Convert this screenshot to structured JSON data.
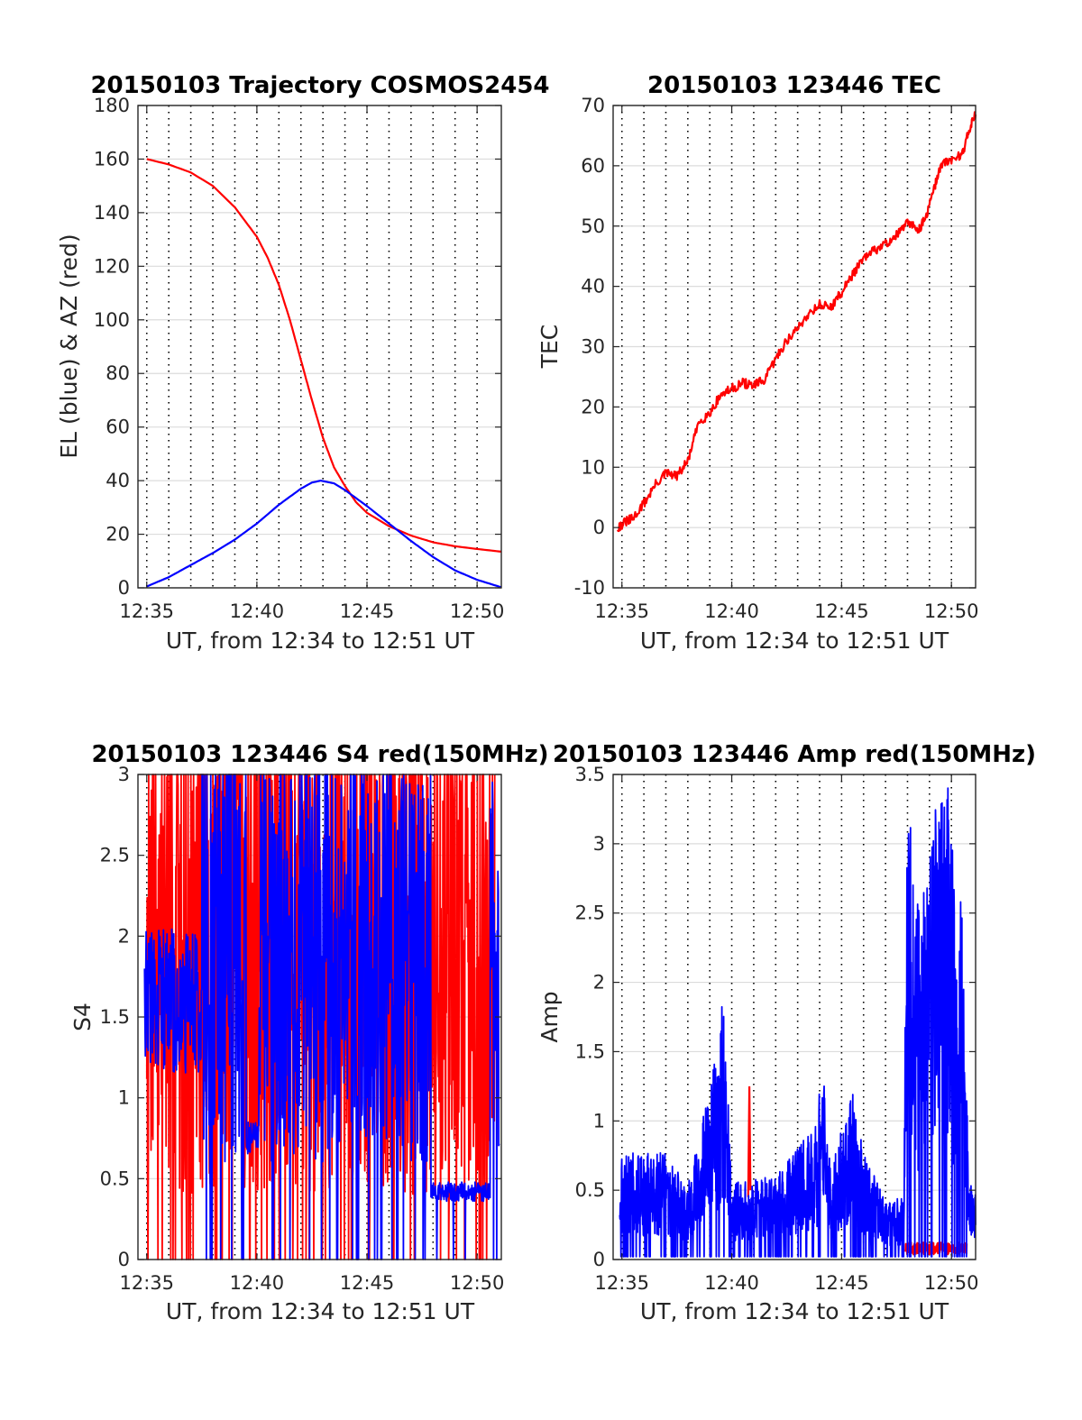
{
  "figure": {
    "description_colors": {
      "red": "#ff0000",
      "blue": "#0000ff"
    }
  },
  "chart_data": [
    {
      "id": "trajectory",
      "type": "line",
      "title": "20150103 Trajectory COSMOS2454",
      "xlabel": "UT, from 12:34 to 12:51 UT",
      "ylabel": "EL (blue) & AZ (red)",
      "xlim": [
        34.6,
        51.1
      ],
      "ylim": [
        0,
        180
      ],
      "xticks": [
        35,
        40,
        45,
        50
      ],
      "xtick_labels": [
        "12:35",
        "12:40",
        "12:45",
        "12:50"
      ],
      "yticks": [
        0,
        20,
        40,
        60,
        80,
        100,
        120,
        140,
        160,
        180
      ],
      "ytick_labels": [
        "0",
        "20",
        "40",
        "60",
        "80",
        "100",
        "120",
        "140",
        "160",
        "180"
      ],
      "vgrid_minutes": [
        35,
        36,
        37,
        38,
        39,
        40,
        41,
        42,
        43,
        44,
        45,
        46,
        47,
        48,
        49,
        50
      ],
      "series": [
        {
          "name": "AZ",
          "color": "#ff0000",
          "x": [
            35,
            36,
            37,
            38,
            39,
            40,
            40.5,
            41,
            41.5,
            42,
            42.5,
            43,
            43.5,
            44,
            44.5,
            45,
            46,
            47,
            48,
            49,
            50,
            51.1
          ],
          "y": [
            160,
            158,
            155,
            150,
            142,
            131,
            123,
            113,
            100,
            85,
            70,
            56,
            45,
            38,
            32,
            28,
            23,
            19.5,
            17,
            15.5,
            14.5,
            13.5
          ]
        },
        {
          "name": "EL",
          "color": "#0000ff",
          "x": [
            35,
            36,
            37,
            38,
            39,
            40,
            41,
            42,
            42.5,
            42.9,
            43.5,
            44,
            45,
            46,
            47,
            48,
            49,
            50,
            51.1
          ],
          "y": [
            0.5,
            4,
            8.5,
            13,
            18,
            24,
            31,
            37,
            39.3,
            40,
            39,
            36.5,
            30.5,
            24,
            17.5,
            11.5,
            6.5,
            3,
            0.2
          ]
        }
      ]
    },
    {
      "id": "tec",
      "type": "line",
      "title": "20150103 123446 TEC",
      "xlabel": "UT, from 12:34 to 12:51 UT",
      "ylabel": "TEC",
      "xlim": [
        34.6,
        51.1
      ],
      "ylim": [
        -10,
        70
      ],
      "xticks": [
        35,
        40,
        45,
        50
      ],
      "xtick_labels": [
        "12:35",
        "12:40",
        "12:45",
        "12:50"
      ],
      "yticks": [
        -10,
        0,
        10,
        20,
        30,
        40,
        50,
        60,
        70
      ],
      "ytick_labels": [
        "-10",
        "0",
        "10",
        "20",
        "30",
        "40",
        "50",
        "60",
        "70"
      ],
      "vgrid_minutes": [
        35,
        36,
        37,
        38,
        39,
        40,
        41,
        42,
        43,
        44,
        45,
        46,
        47,
        48,
        49,
        50
      ],
      "series": [
        {
          "name": "TEC",
          "color": "#ff0000",
          "x": [
            34.8,
            35.2,
            35.5,
            36,
            36.5,
            37,
            37.5,
            38,
            38.5,
            39,
            39.5,
            40,
            40.5,
            41,
            41.5,
            42,
            42.5,
            43,
            43.5,
            44,
            44.5,
            45,
            45.5,
            46,
            46.5,
            47,
            47.5,
            48,
            48.5,
            48.8,
            49.2,
            49.5,
            50,
            50.5,
            50.8,
            51.1
          ],
          "y": [
            0,
            1,
            1.5,
            4,
            7,
            9,
            8.5,
            11,
            17.5,
            19,
            22,
            23,
            24,
            23.5,
            24.5,
            28,
            31,
            33,
            35.5,
            37,
            36.5,
            39,
            42,
            44.5,
            46,
            47,
            48.5,
            50.5,
            49.5,
            51,
            56,
            60,
            61,
            62,
            66,
            68.5
          ]
        }
      ]
    },
    {
      "id": "s4",
      "type": "line",
      "title": "20150103 123446 S4 red(150MHz)",
      "xlabel": "UT, from 12:34 to 12:51 UT",
      "ylabel": "S4",
      "xlim": [
        34.6,
        51.1
      ],
      "ylim": [
        0,
        3
      ],
      "xticks": [
        35,
        40,
        45,
        50
      ],
      "xtick_labels": [
        "12:35",
        "12:40",
        "12:45",
        "12:50"
      ],
      "yticks": [
        0,
        0.5,
        1,
        1.5,
        2,
        2.5,
        3
      ],
      "ytick_labels": [
        "0",
        "0.5",
        "1",
        "1.5",
        "2",
        "2.5",
        "3"
      ],
      "vgrid_minutes": [
        35,
        36,
        37,
        38,
        39,
        40,
        41,
        42,
        43,
        44,
        45,
        46,
        47,
        48,
        49,
        50
      ],
      "series": [
        {
          "name": "S4 red",
          "color": "#ff0000",
          "pattern": "noisy",
          "x_range": [
            35.0,
            50.8
          ],
          "base": 1.9,
          "amplitude": 1.5,
          "seed": 7
        },
        {
          "name": "S4 blue",
          "color": "#0000ff",
          "pattern": "noisy-with-flat",
          "x_range": [
            34.9,
            51.0
          ],
          "base": 1.8,
          "amplitude": 1.2,
          "flat_x": [
            47.9,
            50.6
          ],
          "flat_y": 0.42,
          "dip_x": [
            39.5,
            40.1
          ],
          "dip_y": 0.75,
          "seed": 13
        }
      ]
    },
    {
      "id": "amp",
      "type": "line",
      "title": "20150103 123446 Amp red(150MHz)",
      "xlabel": "UT, from 12:34 to 12:51 UT",
      "ylabel": "Amp",
      "xlim": [
        34.6,
        51.1
      ],
      "ylim": [
        0,
        3.5
      ],
      "xticks": [
        35,
        40,
        45,
        50
      ],
      "xtick_labels": [
        "12:35",
        "12:40",
        "12:45",
        "12:50"
      ],
      "yticks": [
        0,
        0.5,
        1,
        1.5,
        2,
        2.5,
        3,
        3.5
      ],
      "ytick_labels": [
        "0",
        "0.5",
        "1",
        "1.5",
        "2",
        "2.5",
        "3",
        "3.5"
      ],
      "vgrid_minutes": [
        35,
        36,
        37,
        38,
        39,
        40,
        41,
        42,
        43,
        44,
        45,
        46,
        47,
        48,
        49,
        50
      ],
      "series": [
        {
          "name": "Amp red",
          "color": "#ff0000",
          "pattern": "low-band",
          "x_range": [
            47.9,
            50.7
          ],
          "level": 0.08,
          "spike_x": 40.8,
          "spike_y": 1.25,
          "seed": 3
        },
        {
          "name": "Amp blue",
          "color": "#0000ff",
          "pattern": "bursty",
          "x_range": [
            34.9,
            51.1
          ],
          "envelope": [
            [
              34.9,
              0.7
            ],
            [
              37,
              0.7
            ],
            [
              38,
              0.5
            ],
            [
              39.5,
              1.5
            ],
            [
              39.6,
              1.85
            ],
            [
              40,
              0.5
            ],
            [
              42,
              0.55
            ],
            [
              43.9,
              0.9
            ],
            [
              44.1,
              1.35
            ],
            [
              44.5,
              0.6
            ],
            [
              45.5,
              1.1
            ],
            [
              46,
              0.7
            ],
            [
              47,
              0.4
            ],
            [
              47.8,
              0.4
            ],
            [
              48,
              3.1
            ],
            [
              48.5,
              2.4
            ],
            [
              49,
              2.8
            ],
            [
              49.7,
              3.45
            ],
            [
              50,
              2.8
            ],
            [
              50.5,
              2.3
            ],
            [
              50.8,
              0.5
            ],
            [
              51.1,
              0.45
            ]
          ],
          "seed": 21
        }
      ]
    }
  ]
}
